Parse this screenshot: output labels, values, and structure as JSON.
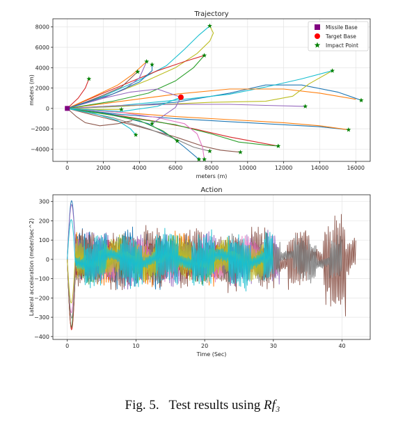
{
  "figure_caption": {
    "prefix": "Fig. 5.",
    "text": "Test results using",
    "math": "Rf₃"
  },
  "chart_data": [
    {
      "type": "line",
      "title": "Trajectory",
      "xlabel": "meters (m)",
      "ylabel": "meters (m)",
      "xlim": [
        -800,
        16800
      ],
      "ylim": [
        -5200,
        8800
      ],
      "x_ticks": [
        0,
        2000,
        4000,
        6000,
        8000,
        10000,
        12000,
        14000,
        16000
      ],
      "y_ticks": [
        -4000,
        -2000,
        0,
        2000,
        4000,
        6000,
        8000
      ],
      "grid": true,
      "legend": {
        "placement": "top-right",
        "entries": [
          {
            "label": "Missile Base",
            "marker": "square",
            "color": "#800080"
          },
          {
            "label": "Target Base",
            "marker": "circle",
            "color": "#ff0000"
          },
          {
            "label": "Impact Point",
            "marker": "star",
            "color": "#008000"
          }
        ]
      },
      "missile_base": [
        0,
        0
      ],
      "target_base": [
        6300,
        1100
      ],
      "impact_points": [
        [
          7900,
          8100
        ],
        [
          7600,
          5200
        ],
        [
          4400,
          4600
        ],
        [
          4700,
          4300
        ],
        [
          3900,
          3600
        ],
        [
          1200,
          2900
        ],
        [
          14700,
          3700
        ],
        [
          16300,
          800
        ],
        [
          13200,
          200
        ],
        [
          15600,
          -2100
        ],
        [
          11700,
          -3700
        ],
        [
          9600,
          -4300
        ],
        [
          7900,
          -4200
        ],
        [
          7600,
          -5000
        ],
        [
          7300,
          -5000
        ],
        [
          6100,
          -3200
        ],
        [
          3800,
          -2600
        ],
        [
          4700,
          -1500
        ],
        [
          3000,
          -100
        ]
      ],
      "series": [
        {
          "color": "#1f77b4",
          "points": [
            [
              0,
              0
            ],
            [
              3000,
              200
            ],
            [
              6000,
              600
            ],
            [
              9000,
              1500
            ],
            [
              11000,
              2300
            ],
            [
              13000,
              2300
            ],
            [
              15000,
              1600
            ],
            [
              16300,
              800
            ]
          ]
        },
        {
          "color": "#17becf",
          "points": [
            [
              0,
              0
            ],
            [
              3000,
              300
            ],
            [
              6000,
              800
            ],
            [
              9000,
              1400
            ],
            [
              11000,
              2100
            ],
            [
              13000,
              2900
            ],
            [
              14700,
              3700
            ]
          ]
        },
        {
          "color": "#ff7f0e",
          "points": [
            [
              0,
              0
            ],
            [
              3000,
              700
            ],
            [
              6000,
              1400
            ],
            [
              9000,
              1900
            ],
            [
              12000,
              1900
            ],
            [
              14000,
              1500
            ],
            [
              16000,
              900
            ]
          ]
        },
        {
          "color": "#bcbd22",
          "points": [
            [
              0,
              0
            ],
            [
              4000,
              300
            ],
            [
              8000,
              600
            ],
            [
              11000,
              700
            ],
            [
              12500,
              1200
            ],
            [
              13400,
              2400
            ],
            [
              14600,
              3600
            ]
          ]
        },
        {
          "color": "#9467bd",
          "points": [
            [
              0,
              0
            ],
            [
              3000,
              300
            ],
            [
              6000,
              400
            ],
            [
              9000,
              400
            ],
            [
              11000,
              300
            ],
            [
              13200,
              200
            ]
          ]
        },
        {
          "color": "#1f77b4",
          "points": [
            [
              0,
              0
            ],
            [
              3000,
              -600
            ],
            [
              6000,
              -1000
            ],
            [
              9000,
              -1300
            ],
            [
              12000,
              -1600
            ],
            [
              14000,
              -1800
            ],
            [
              15600,
              -2100
            ]
          ]
        },
        {
          "color": "#ff7f0e",
          "points": [
            [
              0,
              0
            ],
            [
              3000,
              -400
            ],
            [
              6000,
              -800
            ],
            [
              9000,
              -1100
            ],
            [
              12000,
              -1400
            ],
            [
              14000,
              -1700
            ],
            [
              15600,
              -2100
            ]
          ]
        },
        {
          "color": "#d62728",
          "points": [
            [
              0,
              0
            ],
            [
              2500,
              -600
            ],
            [
              5000,
              -1300
            ],
            [
              7000,
              -2000
            ],
            [
              9000,
              -2800
            ],
            [
              10500,
              -3300
            ],
            [
              11700,
              -3700
            ]
          ]
        },
        {
          "color": "#2ca02c",
          "points": [
            [
              0,
              0
            ],
            [
              3000,
              -800
            ],
            [
              6000,
              -1600
            ],
            [
              8000,
              -2500
            ],
            [
              9500,
              -3300
            ],
            [
              11000,
              -3600
            ],
            [
              11700,
              -3700
            ]
          ]
        },
        {
          "color": "#8c564b",
          "points": [
            [
              0,
              0
            ],
            [
              2000,
              -900
            ],
            [
              4000,
              -1800
            ],
            [
              6000,
              -2800
            ],
            [
              7500,
              -3700
            ],
            [
              8500,
              -4100
            ],
            [
              9600,
              -4300
            ]
          ]
        },
        {
          "color": "#7f7f7f",
          "points": [
            [
              0,
              0
            ],
            [
              2500,
              -900
            ],
            [
              4500,
              -2000
            ],
            [
              6000,
              -3000
            ],
            [
              7000,
              -3800
            ],
            [
              7900,
              -4200
            ]
          ]
        },
        {
          "color": "#e377c2",
          "points": [
            [
              0,
              0
            ],
            [
              3000,
              -400
            ],
            [
              5000,
              -900
            ],
            [
              6500,
              -1500
            ],
            [
              7200,
              -2500
            ],
            [
              7500,
              -3800
            ],
            [
              7600,
              -5000
            ]
          ]
        },
        {
          "color": "#1f77b4",
          "points": [
            [
              0,
              0
            ],
            [
              2500,
              -600
            ],
            [
              4500,
              -1500
            ],
            [
              5800,
              -2800
            ],
            [
              6500,
              -3800
            ],
            [
              7300,
              -5000
            ]
          ]
        },
        {
          "color": "#2ca02c",
          "points": [
            [
              0,
              0
            ],
            [
              2000,
              -500
            ],
            [
              4000,
              -1200
            ],
            [
              5300,
              -2200
            ],
            [
              6100,
              -3200
            ]
          ]
        },
        {
          "color": "#17becf",
          "points": [
            [
              0,
              0
            ],
            [
              1500,
              -500
            ],
            [
              2800,
              -1200
            ],
            [
              3500,
              -2000
            ],
            [
              3800,
              -2600
            ]
          ]
        },
        {
          "color": "#8c564b",
          "points": [
            [
              0,
              0
            ],
            [
              500,
              -800
            ],
            [
              1000,
              -1400
            ],
            [
              1800,
              -1700
            ],
            [
              2800,
              -1500
            ],
            [
              3600,
              -1200
            ]
          ]
        },
        {
          "color": "#bcbd22",
          "points": [
            [
              0,
              0
            ],
            [
              1500,
              -100
            ],
            [
              3000,
              -100
            ]
          ]
        },
        {
          "color": "#17becf",
          "points": [
            [
              0,
              0
            ],
            [
              2000,
              1200
            ],
            [
              4000,
              2800
            ],
            [
              5500,
              4200
            ],
            [
              6500,
              5800
            ],
            [
              7300,
              7200
            ],
            [
              7900,
              8100
            ]
          ]
        },
        {
          "color": "#bcbd22",
          "points": [
            [
              0,
              0
            ],
            [
              2500,
              1400
            ],
            [
              4500,
              2800
            ],
            [
              6000,
              4000
            ],
            [
              7200,
              5400
            ],
            [
              7900,
              6600
            ],
            [
              8100,
              7400
            ],
            [
              7900,
              8100
            ]
          ]
        },
        {
          "color": "#d62728",
          "points": [
            [
              0,
              0
            ],
            [
              2000,
              1500
            ],
            [
              3500,
              2600
            ],
            [
              5000,
              3700
            ],
            [
              6500,
              4600
            ],
            [
              7600,
              5200
            ]
          ]
        },
        {
          "color": "#2ca02c",
          "points": [
            [
              0,
              0
            ],
            [
              2500,
              700
            ],
            [
              4500,
              1500
            ],
            [
              6000,
              2700
            ],
            [
              7000,
              4000
            ],
            [
              7600,
              5200
            ]
          ]
        },
        {
          "color": "#ff7f0e",
          "points": [
            [
              0,
              0
            ],
            [
              1500,
              1200
            ],
            [
              2800,
              2300
            ],
            [
              3600,
              3300
            ],
            [
              4400,
              4600
            ]
          ]
        },
        {
          "color": "#9467bd",
          "points": [
            [
              0,
              0
            ],
            [
              1800,
              900
            ],
            [
              3200,
              1900
            ],
            [
              4000,
              3000
            ],
            [
              4400,
              4600
            ]
          ]
        },
        {
          "color": "#8c564b",
          "points": [
            [
              0,
              0
            ],
            [
              1000,
              600
            ],
            [
              2000,
              1300
            ],
            [
              3000,
              2100
            ],
            [
              3900,
              3600
            ]
          ]
        },
        {
          "color": "#d62728",
          "points": [
            [
              0,
              0
            ],
            [
              600,
              1000
            ],
            [
              1000,
              2000
            ],
            [
              1200,
              2900
            ]
          ]
        },
        {
          "color": "#9467bd",
          "points": [
            [
              0,
              0
            ],
            [
              2000,
              1000
            ],
            [
              3500,
              1600
            ],
            [
              5000,
              1900
            ],
            [
              6300,
              1100
            ],
            [
              6000,
              100
            ],
            [
              4700,
              -1500
            ]
          ]
        },
        {
          "color": "#1f77b4",
          "points": [
            [
              0,
              0
            ],
            [
              2500,
              1400
            ],
            [
              4000,
              2600
            ],
            [
              4700,
              3700
            ],
            [
              4700,
              4300
            ]
          ]
        },
        {
          "color": "#17becf",
          "points": [
            [
              0,
              0
            ],
            [
              3000,
              -300
            ],
            [
              5000,
              200
            ],
            [
              6300,
              1100
            ]
          ]
        }
      ]
    },
    {
      "type": "line",
      "title": "Action",
      "xlabel": "Time (Sec)",
      "ylabel": "Lateral accelaration (meter/sec^2)",
      "xlim": [
        -2.1,
        44.1
      ],
      "ylim": [
        -415,
        335
      ],
      "x_ticks": [
        0,
        10,
        20,
        30,
        40
      ],
      "y_ticks": [
        -400,
        -300,
        -200,
        -100,
        0,
        100,
        200,
        300
      ],
      "grid": true,
      "series": [
        {
          "color": "#1f77b4",
          "duration": 14,
          "amplitude": 150,
          "initial_peak": 280
        },
        {
          "color": "#ff7f0e",
          "duration": 23,
          "amplitude": 130,
          "initial_peak": -340
        },
        {
          "color": "#2ca02c",
          "duration": 22.5,
          "amplitude": 110,
          "initial_peak": -375
        },
        {
          "color": "#d62728",
          "duration": 21,
          "amplitude": 90,
          "initial_peak": -340
        },
        {
          "color": "#9467bd",
          "duration": 31,
          "amplitude": 140,
          "initial_peak": 260
        },
        {
          "color": "#8c564b",
          "duration": 42,
          "amplitude": 160,
          "initial_peak": -330
        },
        {
          "color": "#e377c2",
          "duration": 30.5,
          "amplitude": 100,
          "initial_peak": -300
        },
        {
          "color": "#7f7f7f",
          "duration": 40,
          "amplitude": 120,
          "initial_peak": -280
        },
        {
          "color": "#bcbd22",
          "duration": 30,
          "amplitude": 110,
          "initial_peak": -250
        },
        {
          "color": "#17becf",
          "duration": 30,
          "amplitude": 150,
          "initial_peak": 230
        }
      ]
    }
  ]
}
